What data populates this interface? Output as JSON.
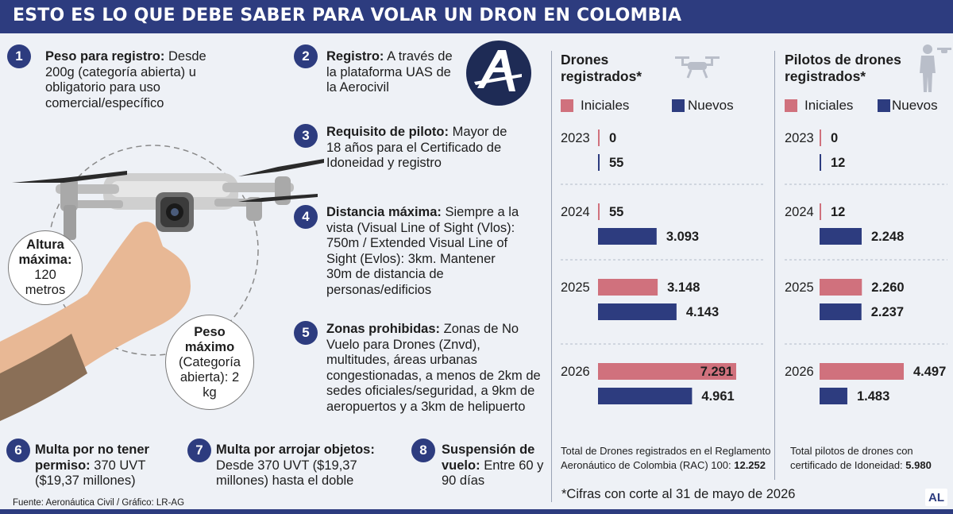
{
  "header": {
    "title": "ESTO ES LO QUE DEBE SABER PARA VOLAR UN DRON EN COLOMBIA"
  },
  "items": [
    {
      "n": "1",
      "title": "Peso para registro:",
      "text": "Desde 200g (categoría abierta) u obligatorio para uso comercial/específico"
    },
    {
      "n": "2",
      "title": "Registro:",
      "text": "A través de la plataforma UAS de la Aerocivil"
    },
    {
      "n": "3",
      "title": "Requisito de piloto:",
      "text": "Mayor de 18 años para el Certificado de Idoneidad y registro"
    },
    {
      "n": "4",
      "title": "Distancia máxima:",
      "text": "Siempre a la vista (Visual Line of Sight (Vlos): 750m / Extended Visual Line of Sight (Evlos): 3km. Mantener 30m de distancia de personas/edificios"
    },
    {
      "n": "5",
      "title": "Zonas prohibidas:",
      "text": "Zonas de No Vuelo para Drones (Znvd), multitudes, áreas urbanas congestionadas, a menos de 2km de sedes oficiales/seguridad, a 9km de aeropuertos y a 3km de helipuerto"
    },
    {
      "n": "6",
      "title": "Multa por no tener permiso:",
      "text": "370 UVT ($19,37 millones)"
    },
    {
      "n": "7",
      "title": "Multa por arrojar objetos:",
      "text": "Desde 370 UVT ($19,37 millones) hasta el doble"
    },
    {
      "n": "8",
      "title": "Suspensión de vuelo:",
      "text": "Entre 60 y 90 días"
    }
  ],
  "bubbles": {
    "altura": {
      "title": "Altura máxima:",
      "value": "120 metros"
    },
    "peso": {
      "title": "Peso máximo",
      "value": "(Categoría abierta): 2 kg"
    }
  },
  "logo": {
    "letter": "A"
  },
  "colors": {
    "navy": "#2d3c7f",
    "iniciales": "#d0717d",
    "nuevos": "#2d3c7f"
  },
  "chart_data": [
    {
      "type": "bar",
      "title": "Drones registrados*",
      "icon": "drone-icon",
      "categories": [
        "2023",
        "2024",
        "2025",
        "2026"
      ],
      "series": [
        {
          "name": "Iniciales",
          "values": [
            0,
            55,
            3148,
            7291
          ],
          "labels": [
            "0",
            "55",
            "3.148",
            "7.291"
          ]
        },
        {
          "name": "Nuevos",
          "values": [
            55,
            3093,
            4143,
            4961
          ],
          "labels": [
            "55",
            "3.093",
            "4.143",
            "4.961"
          ]
        }
      ],
      "total_text": "Total de Drones registrados en el Reglamento Aeronáutico de Colombia (RAC) 100:",
      "total_value": "12.252"
    },
    {
      "type": "bar",
      "title": "Pilotos de drones registrados*",
      "icon": "pilot-icon",
      "categories": [
        "2023",
        "2024",
        "2025",
        "2026"
      ],
      "series": [
        {
          "name": "Iniciales",
          "values": [
            0,
            12,
            2260,
            4497
          ],
          "labels": [
            "0",
            "12",
            "2.260",
            "4.497"
          ]
        },
        {
          "name": "Nuevos",
          "values": [
            12,
            2248,
            2237,
            1483
          ],
          "labels": [
            "12",
            "2.248",
            "2.237",
            "1.483"
          ]
        }
      ],
      "total_text": "Total pilotos de drones con certificado de Idoneidad:",
      "total_value": "5.980"
    }
  ],
  "footnote": "*Cifras con corte al 31 de mayo de 2026",
  "source": "Fuente: Aeronáutica Civil / Gráfico: LR-AG",
  "brand": "AL"
}
